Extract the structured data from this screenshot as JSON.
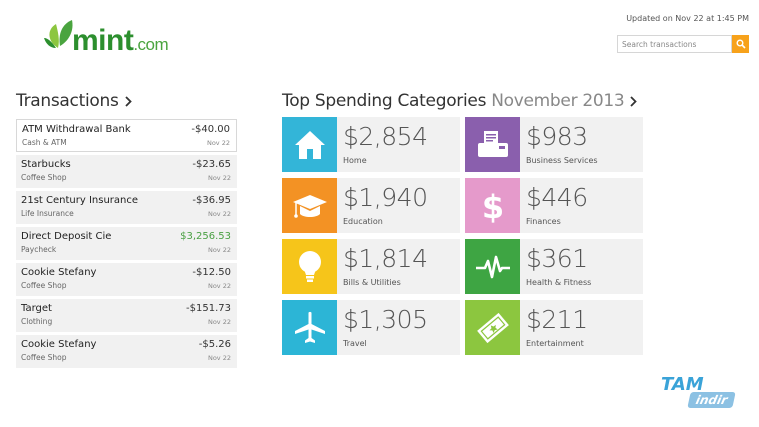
{
  "brand": {
    "name": "mint",
    "suffix": ".com"
  },
  "header": {
    "updated": "Updated on Nov 22 at 1:45 PM",
    "search_placeholder": "Search transactions"
  },
  "transactions": {
    "title": "Transactions",
    "rows": [
      {
        "name": "ATM Withdrawal Bank",
        "category": "Cash & ATM",
        "amount": "-$40.00",
        "date": "Nov 22"
      },
      {
        "name": "Starbucks",
        "category": "Coffee Shop",
        "amount": "-$23.65",
        "date": "Nov 22"
      },
      {
        "name": "21st Century Insurance",
        "category": "Life Insurance",
        "amount": "-$36.95",
        "date": "Nov 22"
      },
      {
        "name": "Direct Deposit Cie",
        "category": "Paycheck",
        "amount": "$3,256.53",
        "date": "Nov 22"
      },
      {
        "name": "Cookie Stefany",
        "category": "Coffee Shop",
        "amount": "-$12.50",
        "date": "Nov 22"
      },
      {
        "name": "Target",
        "category": "Clothing",
        "amount": "-$151.73",
        "date": "Nov 22"
      },
      {
        "name": "Cookie Stefany",
        "category": "Coffee Shop",
        "amount": "-$5.26",
        "date": "Nov 22"
      }
    ]
  },
  "spending": {
    "title": "Top Spending Categories",
    "month": "November 2013",
    "categories": [
      {
        "value": "$2,854",
        "label": "Home",
        "color": "#33b5d8",
        "icon": "house-icon"
      },
      {
        "value": "$983",
        "label": "Business Services",
        "color": "#8a5fad",
        "icon": "fax-icon"
      },
      {
        "value": "$1,940",
        "label": "Education",
        "color": "#f39224",
        "icon": "graduation-cap-icon"
      },
      {
        "value": "$446",
        "label": "Finances",
        "color": "#e59acb",
        "icon": "dollar-icon"
      },
      {
        "value": "$1,814",
        "label": "Bills & Utilities",
        "color": "#f6c51a",
        "icon": "lightbulb-icon"
      },
      {
        "value": "$361",
        "label": "Health & Fitness",
        "color": "#3ea543",
        "icon": "heartbeat-icon"
      },
      {
        "value": "$1,305",
        "label": "Travel",
        "color": "#2cb5d6",
        "icon": "airplane-icon"
      },
      {
        "value": "$211",
        "label": "Entertainment",
        "color": "#8cc63f",
        "icon": "ticket-icon"
      }
    ]
  },
  "watermark": {
    "line1": "TAM",
    "line2": "indir"
  }
}
